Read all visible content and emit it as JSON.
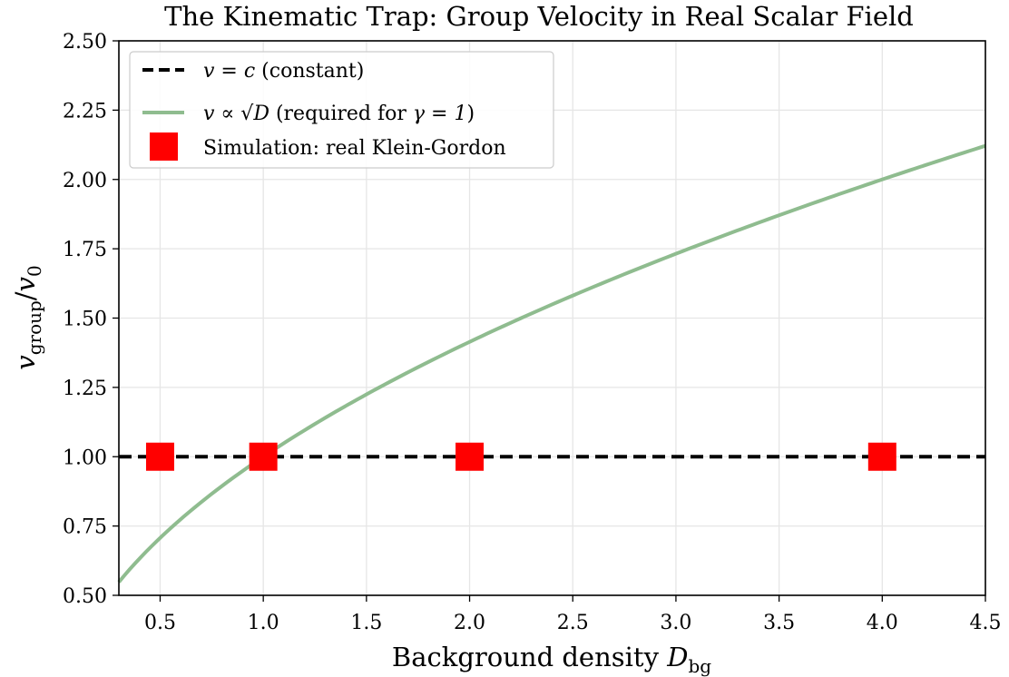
{
  "chart_data": {
    "type": "line",
    "title": "The Kinematic Trap: Group Velocity in Real Scalar Field",
    "xlabel": {
      "prefix": "Background density ",
      "symbol": "D",
      "subscript": "bg"
    },
    "ylabel": {
      "symbol": "v",
      "subscript": "group",
      "divider": "/",
      "symbol2": "v",
      "subscript2": "0"
    },
    "xlim": [
      0.3,
      4.5
    ],
    "ylim": [
      0.5,
      2.5
    ],
    "xticks": [
      "0.5",
      "1.0",
      "1.5",
      "2.0",
      "2.5",
      "3.0",
      "3.5",
      "4.0",
      "4.5"
    ],
    "yticks": [
      "0.50",
      "0.75",
      "1.00",
      "1.25",
      "1.50",
      "1.75",
      "2.00",
      "2.25",
      "2.50"
    ],
    "grid": true,
    "legend_position": "top-left",
    "series": [
      {
        "name": {
          "math": "v = c",
          "rest": " (constant)"
        },
        "style": "dashed",
        "color": "#000000",
        "x": [
          0.3,
          4.5
        ],
        "y": [
          1.0,
          1.0
        ]
      },
      {
        "name": {
          "math": "v ∝ √D",
          "rest": " (required for ",
          "math2": "γ = 1",
          "rest2": ")"
        },
        "style": "solid",
        "color": "#8fbc8f",
        "function": "sqrt",
        "x_range": [
          0.3,
          4.5
        ]
      },
      {
        "name": {
          "rest": "Simulation: real Klein-Gordon"
        },
        "style": "markers",
        "marker": "square",
        "color": "#ff0000",
        "x": [
          0.5,
          1.0,
          2.0,
          4.0
        ],
        "y": [
          1.0,
          1.0,
          1.0,
          1.0
        ]
      }
    ]
  }
}
